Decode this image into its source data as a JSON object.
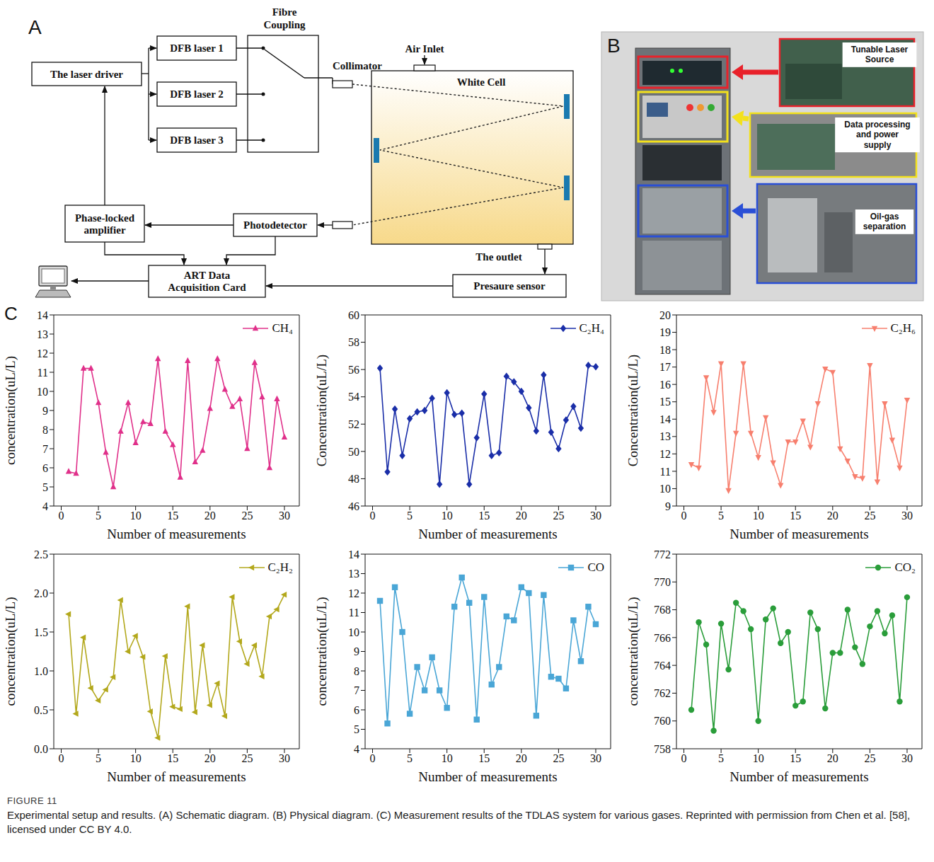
{
  "panel_a": {
    "letter": "A",
    "laser_driver": "The laser driver",
    "lasers": [
      "DFB laser 1",
      "DFB laser 2",
      "DFB laser 3"
    ],
    "fibre_coupling": "Fibre Coupling",
    "collimator": "Collimator",
    "air_inlet": "Air Inlet",
    "white_cell": "White Cell",
    "photodetector": "Photodetector",
    "amplifier": "Phase-locked amplifier",
    "acquisition": "ART Data Acquisition Card",
    "outlet": "The outlet",
    "pressure_sensor": "Presaure sensor"
  },
  "panel_b": {
    "letter": "B",
    "labels": [
      "Tunable Laser Source",
      "Data processing and power supply",
      "Oil-gas separation"
    ]
  },
  "panel_c_letter": "C",
  "chart_data": [
    {
      "type": "line",
      "legend": "upper right",
      "grid": false,
      "x": [
        1,
        2,
        3,
        4,
        5,
        6,
        7,
        8,
        9,
        10,
        11,
        12,
        13,
        14,
        15,
        16,
        17,
        18,
        19,
        20,
        21,
        22,
        23,
        24,
        25,
        26,
        27,
        28,
        29,
        30
      ],
      "xlim": [
        -1,
        32
      ],
      "xticks": [
        0,
        5,
        10,
        15,
        20,
        25,
        30
      ],
      "xlabel": "Number of measurements",
      "ylabel": "concentration(uL/L)",
      "ylim": [
        4,
        14
      ],
      "yticks": [
        4,
        5,
        6,
        7,
        8,
        9,
        10,
        11,
        12,
        13,
        14
      ],
      "series": [
        {
          "name": "CH₄",
          "color": "#e0308a",
          "marker": "triangle-up",
          "values": [
            5.8,
            5.7,
            11.2,
            11.2,
            9.4,
            6.8,
            5.0,
            7.9,
            9.4,
            7.3,
            8.4,
            8.3,
            11.7,
            7.9,
            7.2,
            5.5,
            11.6,
            6.3,
            6.9,
            9.1,
            11.7,
            10.1,
            9.2,
            9.6,
            7.0,
            11.5,
            9.7,
            6.0,
            9.6,
            7.6
          ]
        }
      ]
    },
    {
      "type": "line",
      "legend": "upper right",
      "grid": false,
      "x": [
        1,
        2,
        3,
        4,
        5,
        6,
        7,
        8,
        9,
        10,
        11,
        12,
        13,
        14,
        15,
        16,
        17,
        18,
        19,
        20,
        21,
        22,
        23,
        24,
        25,
        26,
        27,
        28,
        29,
        30
      ],
      "xlim": [
        -1,
        32
      ],
      "xticks": [
        0,
        5,
        10,
        15,
        20,
        25,
        30
      ],
      "xlabel": "Number of measurements",
      "ylabel": "Concentration(uL/L)",
      "ylim": [
        46,
        60
      ],
      "yticks": [
        46,
        48,
        50,
        52,
        54,
        56,
        58,
        60
      ],
      "series": [
        {
          "name": "C₂H₄",
          "color": "#1a2ea8",
          "marker": "diamond",
          "values": [
            56.1,
            48.5,
            53.1,
            49.7,
            52.4,
            52.9,
            53.0,
            53.9,
            47.6,
            54.3,
            52.7,
            52.8,
            47.6,
            51.0,
            54.2,
            49.7,
            49.9,
            55.5,
            55.1,
            54.4,
            53.2,
            51.5,
            55.6,
            51.4,
            50.2,
            52.3,
            53.3,
            51.7,
            56.3,
            56.2
          ]
        }
      ]
    },
    {
      "type": "line",
      "legend": "upper right",
      "grid": false,
      "x": [
        1,
        2,
        3,
        4,
        5,
        6,
        7,
        8,
        9,
        10,
        11,
        12,
        13,
        14,
        15,
        16,
        17,
        18,
        19,
        20,
        21,
        22,
        23,
        24,
        25,
        26,
        27,
        28,
        29,
        30
      ],
      "xlim": [
        -1,
        32
      ],
      "xticks": [
        0,
        5,
        10,
        15,
        20,
        25,
        30
      ],
      "xlabel": "Number of measurements",
      "ylabel": "Concentration(uL/L)",
      "ylim": [
        9,
        20
      ],
      "yticks": [
        9,
        10,
        11,
        12,
        13,
        14,
        15,
        16,
        17,
        18,
        19,
        20
      ],
      "series": [
        {
          "name": "C₂H₆",
          "color": "#f77f6e",
          "marker": "triangle-down",
          "values": [
            11.4,
            11.2,
            16.4,
            14.4,
            17.2,
            9.9,
            13.2,
            17.2,
            13.2,
            11.8,
            14.1,
            11.5,
            10.2,
            12.7,
            12.7,
            13.9,
            12.4,
            14.9,
            16.9,
            16.7,
            12.3,
            11.6,
            10.7,
            10.6,
            17.1,
            10.4,
            14.9,
            12.8,
            11.2,
            15.1
          ]
        }
      ]
    },
    {
      "type": "line",
      "legend": "upper right",
      "grid": false,
      "x": [
        1,
        2,
        3,
        4,
        5,
        6,
        7,
        8,
        9,
        10,
        11,
        12,
        13,
        14,
        15,
        16,
        17,
        18,
        19,
        20,
        21,
        22,
        23,
        24,
        25,
        26,
        27,
        28,
        29,
        30
      ],
      "xlim": [
        -1,
        32
      ],
      "xticks": [
        0,
        5,
        10,
        15,
        20,
        25,
        30
      ],
      "xlabel": "Number of measurements",
      "ylabel": "concentration(uL/L)",
      "ylim": [
        0,
        2.5
      ],
      "yticks": [
        {
          "value": 0,
          "label": "0.0"
        },
        0.5,
        {
          "value": 1,
          "label": "1.0"
        },
        1.5,
        {
          "value": 2,
          "label": "2.0"
        },
        2.5
      ],
      "series": [
        {
          "name": "C₂H₂",
          "color": "#b3a81c",
          "marker": "triangle-left",
          "values": [
            1.73,
            0.45,
            1.43,
            0.78,
            0.62,
            0.76,
            0.92,
            1.91,
            1.25,
            1.45,
            1.18,
            0.48,
            0.14,
            1.19,
            0.54,
            0.51,
            1.83,
            0.47,
            1.33,
            0.56,
            0.84,
            0.42,
            1.95,
            1.38,
            1.09,
            1.33,
            0.93,
            1.7,
            1.79,
            1.98
          ]
        }
      ]
    },
    {
      "type": "line",
      "legend": "upper right",
      "grid": false,
      "x": [
        1,
        2,
        3,
        4,
        5,
        6,
        7,
        8,
        9,
        10,
        11,
        12,
        13,
        14,
        15,
        16,
        17,
        18,
        19,
        20,
        21,
        22,
        23,
        24,
        25,
        26,
        27,
        28,
        29,
        30
      ],
      "xlim": [
        -1,
        32
      ],
      "xticks": [
        0,
        5,
        10,
        15,
        20,
        25,
        30
      ],
      "xlabel": "Number of measurements",
      "ylabel": "concentration(uL/L)",
      "ylim": [
        4,
        14
      ],
      "yticks": [
        4,
        5,
        6,
        7,
        8,
        9,
        10,
        11,
        12,
        13,
        14
      ],
      "series": [
        {
          "name": "CO",
          "color": "#4aa6d6",
          "marker": "square",
          "values": [
            11.6,
            5.3,
            12.3,
            10.0,
            5.8,
            8.2,
            7.0,
            8.7,
            7.0,
            6.1,
            11.3,
            12.8,
            11.5,
            5.5,
            11.8,
            7.3,
            8.2,
            10.8,
            10.6,
            12.3,
            12.0,
            5.7,
            11.9,
            7.7,
            7.6,
            7.1,
            10.6,
            8.5,
            11.3,
            10.4
          ]
        }
      ]
    },
    {
      "type": "line",
      "legend": "upper right",
      "grid": false,
      "x": [
        1,
        2,
        3,
        4,
        5,
        6,
        7,
        8,
        9,
        10,
        11,
        12,
        13,
        14,
        15,
        16,
        17,
        18,
        19,
        20,
        21,
        22,
        23,
        24,
        25,
        26,
        27,
        28,
        29,
        30
      ],
      "xlim": [
        -1,
        32
      ],
      "xticks": [
        0,
        5,
        10,
        15,
        20,
        25,
        30
      ],
      "xlabel": "Number of measurements",
      "ylabel": "concentration(uL/L)",
      "ylim": [
        758,
        772
      ],
      "yticks": [
        758,
        760,
        762,
        764,
        766,
        768,
        770,
        772
      ],
      "series": [
        {
          "name": "CO₂",
          "color": "#2a9d3a",
          "marker": "circle",
          "values": [
            760.8,
            767.1,
            765.5,
            759.3,
            767.0,
            763.7,
            768.5,
            767.9,
            766.6,
            760.0,
            767.3,
            768.1,
            765.6,
            766.4,
            761.1,
            761.4,
            767.8,
            766.6,
            760.9,
            764.9,
            764.9,
            768.0,
            765.3,
            764.1,
            766.8,
            767.9,
            766.3,
            767.6,
            761.4,
            768.9
          ]
        }
      ]
    }
  ],
  "caption": {
    "figure": "FIGURE 11",
    "text": "Experimental setup and results. (A) Schematic diagram. (B) Physical diagram. (C) Measurement results of the TDLAS system for various gases. Reprinted with permission from Chen et al. [58], licensed under CC BY 4.0."
  }
}
